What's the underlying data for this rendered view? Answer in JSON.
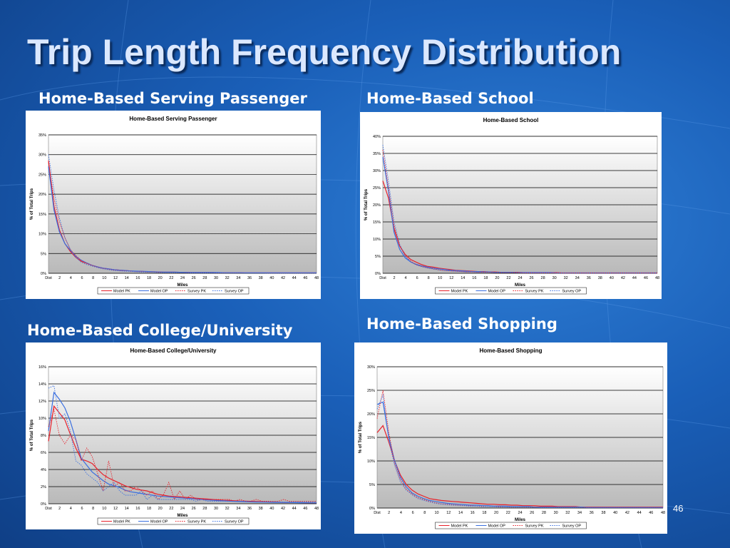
{
  "slide": {
    "title": "Trip Length Frequency Distribution",
    "page_number": "46",
    "background_color": "#1a5fb8",
    "title_color": "#dbe8ff"
  },
  "panels": [
    {
      "label": "Home-Based Serving Passenger"
    },
    {
      "label": "Home-Based School"
    },
    {
      "label": "Home-Based College/University"
    },
    {
      "label": "Home-Based Shopping"
    }
  ],
  "colors": {
    "model_pk": "#e8202a",
    "model_op": "#3a6fe0",
    "survey_pk": "#e8202a",
    "survey_op": "#3a6fe0"
  },
  "chart_data": [
    {
      "type": "line",
      "title": "Home-Based Serving Passenger",
      "xlabel": "Miles",
      "ylabel": "% of Total Trips",
      "ylim": [
        0,
        35
      ],
      "yticks": [
        "0%",
        "5%",
        "10%",
        "15%",
        "20%",
        "25%",
        "30%",
        "35%"
      ],
      "xticks": [
        "Dist",
        "2",
        "4",
        "6",
        "8",
        "10",
        "12",
        "14",
        "16",
        "18",
        "20",
        "22",
        "24",
        "26",
        "28",
        "30",
        "32",
        "34",
        "36",
        "38",
        "40",
        "42",
        "44",
        "46",
        "48"
      ],
      "grid": true,
      "legend_placement": "bottom",
      "series": [
        {
          "name": "Model PK",
          "style": "solid",
          "values": [
            28.5,
            17,
            11,
            7.5,
            5.5,
            4,
            3,
            2.5,
            2,
            1.6,
            1.3,
            1.1,
            0.9,
            0.8,
            0.7,
            0.6,
            0.5,
            0.5,
            0.4,
            0.4,
            0.35,
            0.3,
            0.3,
            0.3,
            0.25,
            0.25,
            0.2,
            0.2,
            0.2,
            0.2,
            0.2,
            0.15,
            0.15,
            0.15,
            0.15,
            0.15,
            0.1,
            0.1,
            0.1,
            0.1,
            0.1,
            0.1,
            0.1,
            0.1,
            0.1,
            0.1,
            0.1,
            0.1,
            0.1,
            0.1
          ]
        },
        {
          "name": "Model OP",
          "style": "solid",
          "values": [
            27,
            16,
            10.5,
            7.5,
            5.8,
            4.3,
            3.3,
            2.6,
            2,
            1.6,
            1.3,
            1.1,
            0.9,
            0.8,
            0.7,
            0.6,
            0.55,
            0.5,
            0.45,
            0.4,
            0.35,
            0.3,
            0.3,
            0.3,
            0.25,
            0.25,
            0.2,
            0.2,
            0.2,
            0.2,
            0.2,
            0.2,
            0.15,
            0.15,
            0.15,
            0.15,
            0.1,
            0.1,
            0.1,
            0.1,
            0.1,
            0.1,
            0.1,
            0.1,
            0.1,
            0.1,
            0.1,
            0.1,
            0.1,
            0.1
          ]
        },
        {
          "name": "Survey PK",
          "style": "dotted",
          "values": [
            28,
            19,
            13,
            9,
            6,
            4.5,
            3.2,
            2.5,
            2,
            1.5,
            1.2,
            1,
            0.8,
            0.7,
            0.6,
            0.5,
            0.4,
            0.4,
            0.3,
            0.3,
            0.3,
            0.2,
            0.2,
            0.2,
            0.2,
            0.2,
            0.1,
            0.1,
            0.1,
            0.1,
            0.1,
            0.1,
            0.1,
            0.1,
            0.1,
            0.1,
            0.1,
            0.1,
            0.1,
            0.1,
            0.05,
            0.05,
            0.05,
            0.05,
            0.05,
            0.05,
            0.05,
            0.05,
            0.05,
            0.05
          ]
        },
        {
          "name": "Survey OP",
          "style": "dotted",
          "values": [
            30,
            21,
            14,
            9,
            6,
            4,
            2.8,
            2.2,
            1.8,
            1.4,
            1.1,
            0.9,
            0.7,
            0.6,
            0.5,
            0.5,
            0.4,
            0.3,
            0.3,
            0.3,
            0.2,
            0.2,
            0.2,
            0.2,
            0.2,
            0.15,
            0.1,
            0.1,
            0.1,
            0.1,
            0.1,
            0.1,
            0.1,
            0.1,
            0.1,
            0.1,
            0.1,
            0.1,
            0.1,
            0.1,
            0.05,
            0.05,
            0.05,
            0.05,
            0.05,
            0.05,
            0.05,
            0.05,
            0.05,
            0.05
          ]
        }
      ]
    },
    {
      "type": "line",
      "title": "Home-Based School",
      "xlabel": "Miles",
      "ylabel": "% of Total Trips",
      "ylim": [
        0,
        40
      ],
      "yticks": [
        "0%",
        "5%",
        "10%",
        "15%",
        "20%",
        "25%",
        "30%",
        "35%",
        "40%"
      ],
      "xticks": [
        "Dist",
        "2",
        "4",
        "6",
        "8",
        "10",
        "12",
        "14",
        "16",
        "18",
        "20",
        "22",
        "24",
        "26",
        "28",
        "30",
        "32",
        "34",
        "36",
        "38",
        "40",
        "42",
        "44",
        "46",
        "48"
      ],
      "grid": true,
      "legend_placement": "bottom",
      "series": [
        {
          "name": "Model PK",
          "style": "solid",
          "values": [
            27,
            22,
            13,
            8,
            5.5,
            4,
            3.2,
            2.5,
            2,
            1.8,
            1.5,
            1.3,
            1.1,
            0.9,
            0.8,
            0.7,
            0.6,
            0.5,
            0.5,
            0.4,
            0.4,
            0.3,
            0.3,
            0.3,
            0.3,
            0.2,
            0.2,
            0.2,
            0.2,
            0.2,
            0.2,
            0.2,
            0.1,
            0.1,
            0.1,
            0.1,
            0.1,
            0.1,
            0.1,
            0.1,
            0.1,
            0.1,
            0.1,
            0.1,
            0.1,
            0.1,
            0.1,
            0.1,
            0.1,
            0.1
          ]
        },
        {
          "name": "Model OP",
          "style": "solid",
          "values": [
            34,
            24,
            12,
            7,
            4.5,
            3.3,
            2.6,
            2.1,
            1.8,
            1.5,
            1.3,
            1.1,
            0.9,
            0.8,
            0.7,
            0.6,
            0.5,
            0.5,
            0.4,
            0.4,
            0.3,
            0.3,
            0.3,
            0.3,
            0.2,
            0.2,
            0.2,
            0.2,
            0.2,
            0.2,
            0.2,
            0.1,
            0.1,
            0.1,
            0.1,
            0.1,
            0.1,
            0.1,
            0.1,
            0.1,
            0.1,
            0.1,
            0.1,
            0.1,
            0.1,
            0.1,
            0.1,
            0.1,
            0.1,
            0.1
          ]
        },
        {
          "name": "Survey PK",
          "style": "dotted",
          "values": [
            36,
            25,
            14,
            8,
            5,
            3.5,
            2.5,
            2,
            1.6,
            1.3,
            1,
            0.8,
            0.7,
            0.6,
            0.5,
            0.4,
            0.4,
            0.3,
            0.3,
            0.3,
            0.2,
            0.2,
            0.2,
            0.2,
            0.2,
            0.1,
            0.1,
            0.1,
            0.1,
            0.1,
            0.1,
            0.1,
            0.1,
            0.1,
            0.1,
            0.1,
            0.1,
            0.1,
            0.1,
            0.1,
            0.1,
            0.1,
            0.1,
            0.1,
            0.1,
            0.1,
            0.1,
            0.1,
            0.1,
            0.1
          ]
        },
        {
          "name": "Survey OP",
          "style": "dotted",
          "values": [
            37.5,
            27,
            15,
            8.5,
            5,
            3.3,
            2.4,
            1.9,
            1.5,
            1.2,
            1,
            0.8,
            0.7,
            0.6,
            0.5,
            0.4,
            0.4,
            0.3,
            0.3,
            0.3,
            0.2,
            0.2,
            0.2,
            0.2,
            0.2,
            0.1,
            0.1,
            0.1,
            0.1,
            0.1,
            0.1,
            0.1,
            0.1,
            0.1,
            0.1,
            0.1,
            0.1,
            0.1,
            0.1,
            0.1,
            0.1,
            0.1,
            0.1,
            0.1,
            0.1,
            0.1,
            0.1,
            0.1,
            0.1,
            0.1
          ]
        }
      ]
    },
    {
      "type": "line",
      "title": "Home-Based College/University",
      "xlabel": "Miles",
      "ylabel": "% of Total Trips",
      "ylim": [
        0,
        16
      ],
      "yticks": [
        "0%",
        "2%",
        "4%",
        "6%",
        "8%",
        "10%",
        "12%",
        "14%",
        "16%"
      ],
      "xticks": [
        "Dist",
        "2",
        "4",
        "6",
        "8",
        "10",
        "12",
        "14",
        "16",
        "18",
        "20",
        "22",
        "24",
        "26",
        "28",
        "30",
        "32",
        "34",
        "36",
        "38",
        "40",
        "42",
        "44",
        "46",
        "48"
      ],
      "grid": true,
      "legend_placement": "bottom",
      "series": [
        {
          "name": "Model PK",
          "style": "solid",
          "values": [
            7.3,
            11.4,
            10.6,
            9.8,
            8.1,
            6.5,
            5.2,
            5,
            4.7,
            4,
            3.4,
            3,
            2.7,
            2.4,
            2.1,
            1.9,
            1.7,
            1.6,
            1.5,
            1.3,
            1.1,
            1,
            0.9,
            0.85,
            0.8,
            0.75,
            0.7,
            0.65,
            0.6,
            0.55,
            0.5,
            0.45,
            0.4,
            0.38,
            0.35,
            0.32,
            0.3,
            0.28,
            0.26,
            0.24,
            0.22,
            0.2,
            0.18,
            0.16,
            0.15,
            0.14,
            0.13,
            0.12,
            0.11,
            0.1
          ]
        },
        {
          "name": "Model OP",
          "style": "solid",
          "values": [
            8.5,
            13,
            12.2,
            11.2,
            9.6,
            7.5,
            5.3,
            4.5,
            3.7,
            3.2,
            2.7,
            2.3,
            2.1,
            1.9,
            1.6,
            1.4,
            1.3,
            1.2,
            1.1,
            1,
            0.9,
            0.85,
            0.8,
            0.75,
            0.7,
            0.65,
            0.6,
            0.55,
            0.5,
            0.45,
            0.4,
            0.37,
            0.34,
            0.31,
            0.28,
            0.26,
            0.24,
            0.22,
            0.2,
            0.19,
            0.18,
            0.17,
            0.16,
            0.15,
            0.14,
            0.13,
            0.12,
            0.11,
            0.1,
            0.1
          ]
        },
        {
          "name": "Survey PK",
          "style": "dotted",
          "values": [
            9,
            11,
            8,
            7,
            8,
            7.5,
            5,
            6.5,
            5.5,
            3.5,
            1.5,
            5,
            2,
            2.5,
            1.5,
            1.5,
            2,
            1.5,
            1,
            1.5,
            0.5,
            1,
            2.5,
            0.5,
            1.5,
            0.5,
            1,
            0.5,
            0.5,
            0.5,
            0.5,
            0.5,
            0.5,
            0.5,
            0.3,
            0.5,
            0.3,
            0.3,
            0.5,
            0.3,
            0.3,
            0.3,
            0.3,
            0.5,
            0.3,
            0.3,
            0.3,
            0.3,
            0.3,
            0.3
          ]
        },
        {
          "name": "Survey OP",
          "style": "dotted",
          "values": [
            13.5,
            13.8,
            10,
            10.5,
            8.5,
            5,
            4.5,
            3.5,
            3,
            2.5,
            1.5,
            2,
            2.5,
            1.5,
            1,
            1,
            1,
            1.5,
            0.5,
            1,
            0.5,
            0.5,
            0.5,
            0.5,
            0.5,
            0.5,
            0.5,
            0.3,
            0.5,
            0.3,
            0.3,
            0.3,
            0.3,
            0.3,
            0.3,
            0.3,
            0.3,
            0.2,
            0.2,
            0.2,
            0.2,
            0.2,
            0.2,
            0.2,
            0.2,
            0.2,
            0.2,
            0.2,
            0.2,
            0.2
          ]
        }
      ]
    },
    {
      "type": "line",
      "title": "Home-Based Shopping",
      "xlabel": "Miles",
      "ylabel": "% of Total Trips",
      "ylim": [
        0,
        30
      ],
      "yticks": [
        "0%",
        "5%",
        "10%",
        "15%",
        "20%",
        "25%",
        "30%"
      ],
      "xticks": [
        "Dist",
        "2",
        "4",
        "6",
        "8",
        "10",
        "12",
        "14",
        "16",
        "18",
        "20",
        "22",
        "24",
        "26",
        "28",
        "30",
        "32",
        "34",
        "36",
        "38",
        "40",
        "42",
        "44",
        "46",
        "48"
      ],
      "grid": true,
      "legend_placement": "bottom",
      "series": [
        {
          "name": "Model PK",
          "style": "solid",
          "values": [
            16,
            17.5,
            14,
            10,
            7,
            5,
            3.8,
            3,
            2.5,
            2,
            1.8,
            1.6,
            1.5,
            1.4,
            1.3,
            1.2,
            1.1,
            1,
            0.9,
            0.8,
            0.8,
            0.7,
            0.7,
            0.6,
            0.6,
            0.5,
            0.5,
            0.5,
            0.4,
            0.4,
            0.4,
            0.3,
            0.3,
            0.3,
            0.3,
            0.2,
            0.2,
            0.2,
            0.2,
            0.2,
            0.2,
            0.2,
            0.2,
            0.2,
            0.2,
            0.2,
            0.2,
            0.2,
            0.2,
            0.2
          ]
        },
        {
          "name": "Model OP",
          "style": "solid",
          "values": [
            22,
            22.5,
            15,
            10,
            6.5,
            4.5,
            3.2,
            2.5,
            2,
            1.6,
            1.4,
            1.2,
            1,
            0.9,
            0.8,
            0.7,
            0.6,
            0.6,
            0.5,
            0.5,
            0.4,
            0.4,
            0.4,
            0.3,
            0.3,
            0.3,
            0.3,
            0.2,
            0.2,
            0.2,
            0.2,
            0.2,
            0.2,
            0.2,
            0.2,
            0.2,
            0.1,
            0.1,
            0.1,
            0.1,
            0.1,
            0.1,
            0.1,
            0.1,
            0.1,
            0.1,
            0.1,
            0.1,
            0.1,
            0.1
          ]
        },
        {
          "name": "Survey PK",
          "style": "dotted",
          "values": [
            19,
            25,
            16,
            9.5,
            6,
            4,
            3,
            2.2,
            1.8,
            1.4,
            1.1,
            0.9,
            0.8,
            0.7,
            0.6,
            0.5,
            0.5,
            0.4,
            0.4,
            0.3,
            0.3,
            0.3,
            0.2,
            0.2,
            0.2,
            0.2,
            0.2,
            0.2,
            0.1,
            0.1,
            0.1,
            0.1,
            0.1,
            0.1,
            0.1,
            0.1,
            0.1,
            0.1,
            0.1,
            0.1,
            0.1,
            0.1,
            0.1,
            0.1,
            0.1,
            0.1,
            0.1,
            0.1,
            0.1,
            0.1
          ]
        },
        {
          "name": "Survey OP",
          "style": "dotted",
          "values": [
            21,
            24,
            14.5,
            9,
            5.5,
            3.8,
            2.8,
            2,
            1.6,
            1.3,
            1,
            0.8,
            0.7,
            0.6,
            0.5,
            0.5,
            0.4,
            0.4,
            0.3,
            0.3,
            0.3,
            0.2,
            0.2,
            0.2,
            0.2,
            0.2,
            0.2,
            0.1,
            0.1,
            0.1,
            0.1,
            0.1,
            0.1,
            0.1,
            0.1,
            0.1,
            0.1,
            0.1,
            0.1,
            0.1,
            0.1,
            0.1,
            0.1,
            0.1,
            0.1,
            0.1,
            0.1,
            0.1,
            0.1,
            0.1
          ]
        }
      ]
    }
  ]
}
